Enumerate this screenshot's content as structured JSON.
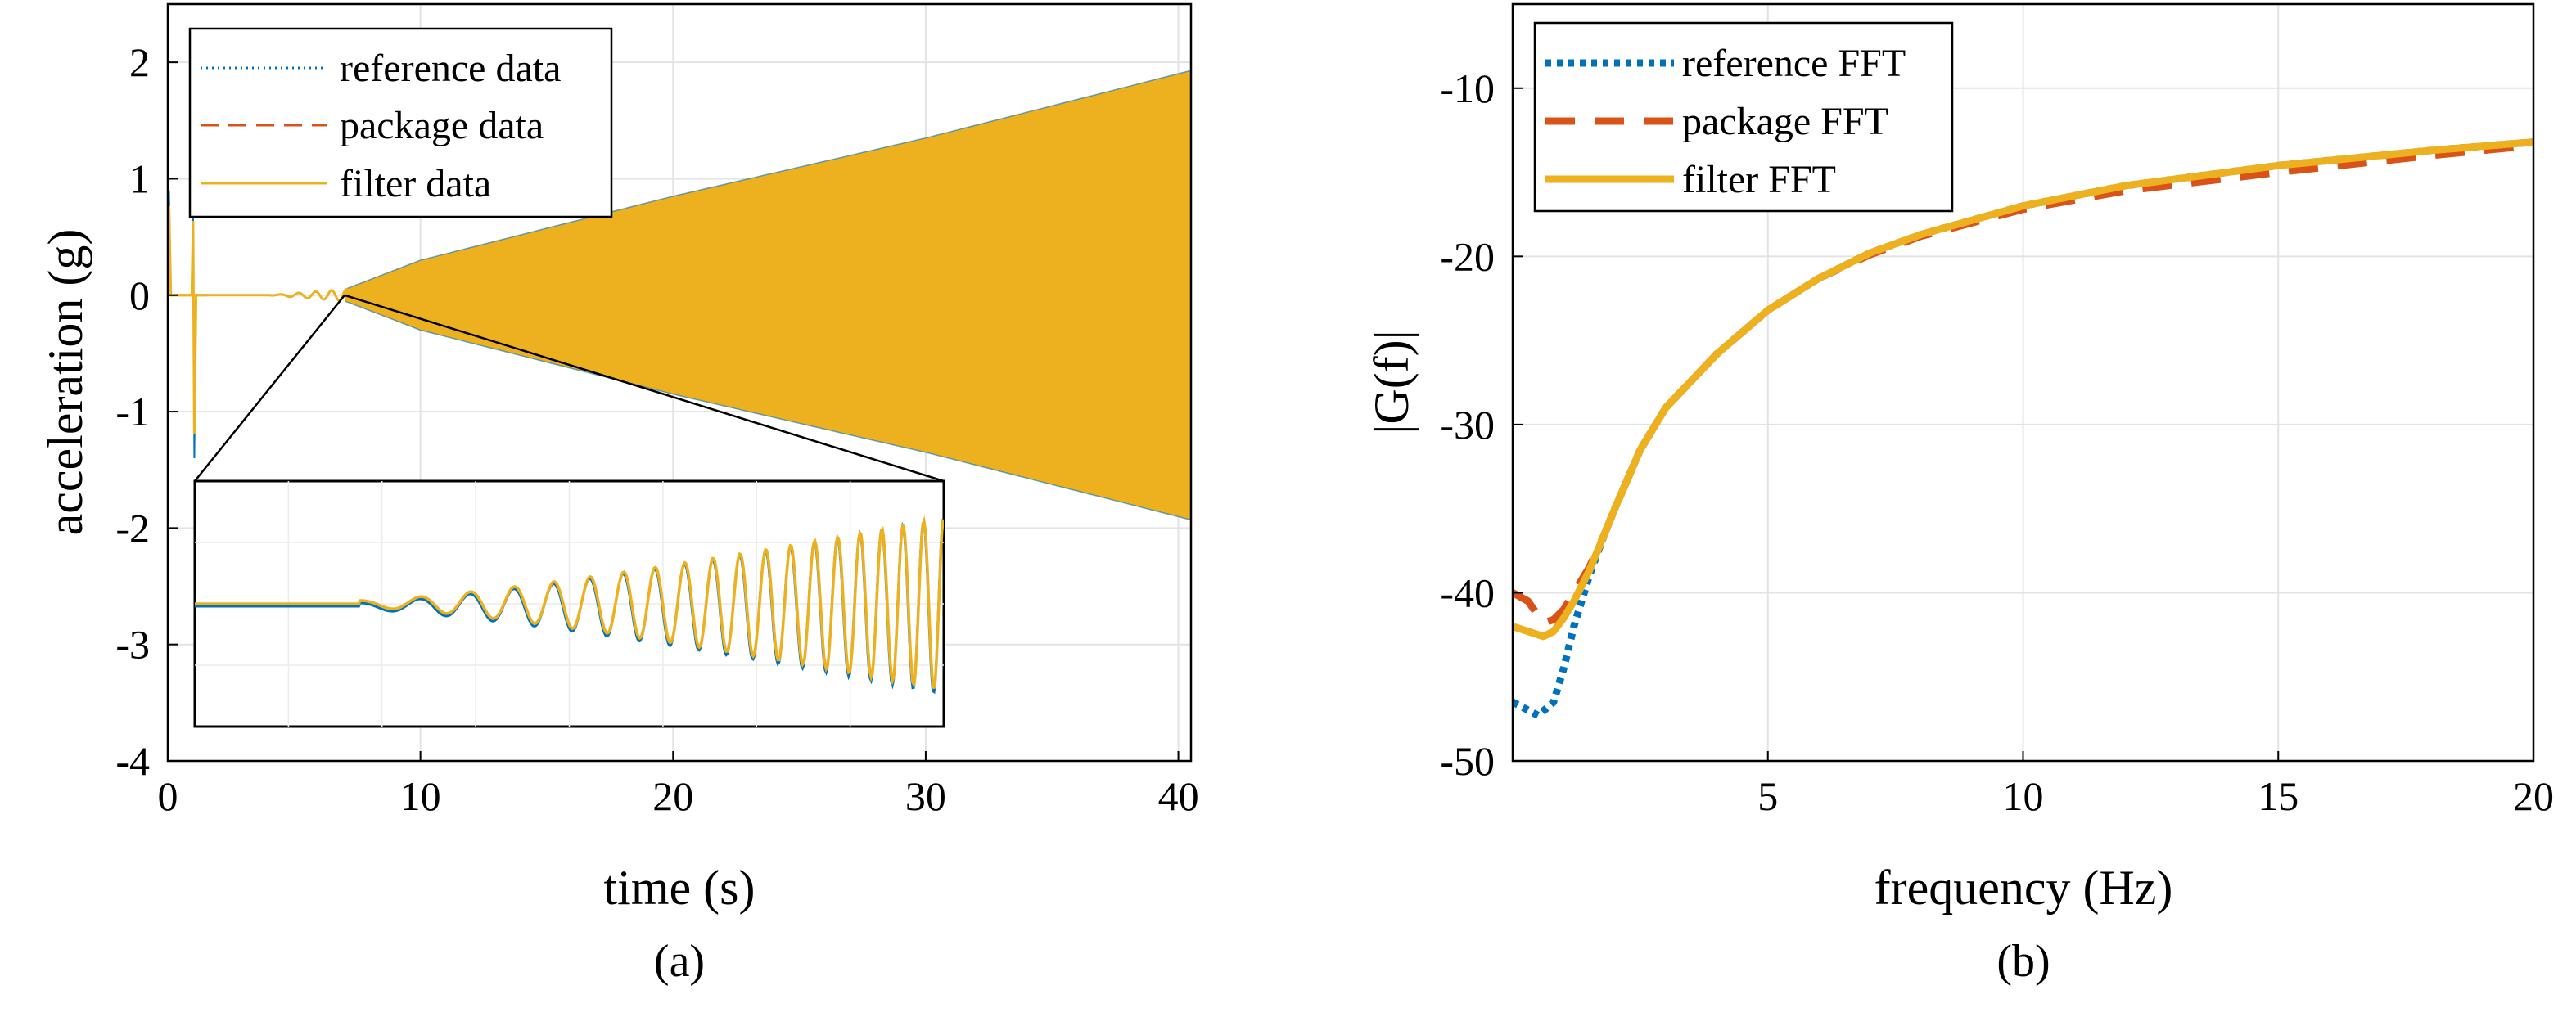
{
  "chart_data": [
    {
      "type": "line",
      "xlabel": "time (s)",
      "ylabel": "acceleration (g)",
      "caption": "(a)",
      "xlim": [
        0,
        40.5
      ],
      "ylim": [
        -4,
        2.5
      ],
      "xticks": [
        0,
        10,
        20,
        30,
        40
      ],
      "yticks": [
        -4,
        -3,
        -2,
        -1,
        0,
        1,
        2
      ],
      "grid": true,
      "legend_position": "top-left",
      "series": [
        {
          "name": "reference data",
          "style": "dotted",
          "color": "#0072BD"
        },
        {
          "name": "package data",
          "style": "dashed",
          "color": "#D95319"
        },
        {
          "name": "filter data",
          "style": "solid",
          "color": "#EDB120"
        }
      ],
      "signal": {
        "description_values": {
          "initial_impulse_time": 1.0,
          "impulse_peak_high": 1.0,
          "impulse_peak_low": -1.4,
          "growth_start_time": 7.0,
          "envelope": [
            [
              7,
              0.05
            ],
            [
              10,
              0.3
            ],
            [
              20,
              0.85
            ],
            [
              30,
              1.35
            ],
            [
              40.5,
              1.93
            ]
          ]
        }
      },
      "inset": {
        "source_point": {
          "x": 7.0,
          "y": 0.0
        },
        "oscillation_count": 19,
        "start_amplitude": 0.0,
        "end_amplitude": 1.0
      }
    },
    {
      "type": "line",
      "xlabel": "frequency (Hz)",
      "ylabel": "|G(f)|",
      "caption": "(b)",
      "xlim": [
        0,
        20
      ],
      "ylim": [
        -50,
        -5
      ],
      "xticks": [
        5,
        10,
        15,
        20
      ],
      "yticks": [
        -50,
        -40,
        -30,
        -20,
        -10
      ],
      "grid": true,
      "legend_position": "top-left",
      "series": [
        {
          "name": "reference FFT",
          "style": "dotted",
          "color": "#0072BD",
          "x": [
            0,
            0.5,
            0.8,
            1.0,
            1.2,
            1.5,
            1.8,
            2.0,
            2.5,
            3,
            4,
            5,
            6,
            7,
            8,
            10,
            12,
            15,
            18,
            20
          ],
          "y": [
            -46.5,
            -47.3,
            -46.5,
            -44.5,
            -42.0,
            -39.0,
            -36.5,
            -35.0,
            -31.5,
            -29.0,
            -25.8,
            -23.2,
            -21.3,
            -19.8,
            -18.7,
            -17.0,
            -15.8,
            -14.6,
            -13.7,
            -13.2
          ]
        },
        {
          "name": "package FFT",
          "style": "dashed",
          "color": "#D95319",
          "x": [
            0,
            0.3,
            0.6,
            0.8,
            1.0,
            1.2,
            1.5,
            1.8,
            2.0,
            2.5,
            3,
            4,
            5,
            6,
            7,
            8,
            10,
            12,
            15,
            18,
            20
          ],
          "y": [
            -40.0,
            -40.5,
            -41.8,
            -41.6,
            -41.0,
            -40.0,
            -38.5,
            -36.5,
            -35.0,
            -31.5,
            -29.0,
            -25.8,
            -23.2,
            -21.3,
            -19.9,
            -18.8,
            -17.2,
            -16.1,
            -15.0,
            -14.0,
            -13.4
          ]
        },
        {
          "name": "filter FFT",
          "style": "solid",
          "color": "#EDB120",
          "x": [
            0,
            0.3,
            0.6,
            0.8,
            1.0,
            1.2,
            1.5,
            1.8,
            2.0,
            2.5,
            3,
            4,
            5,
            6,
            7,
            8,
            10,
            12,
            15,
            18,
            20
          ],
          "y": [
            -42.0,
            -42.3,
            -42.6,
            -42.3,
            -41.5,
            -40.5,
            -38.7,
            -36.5,
            -35.0,
            -31.5,
            -29.0,
            -25.8,
            -23.2,
            -21.3,
            -19.8,
            -18.7,
            -17.0,
            -15.8,
            -14.6,
            -13.7,
            -13.2
          ]
        }
      ]
    }
  ]
}
